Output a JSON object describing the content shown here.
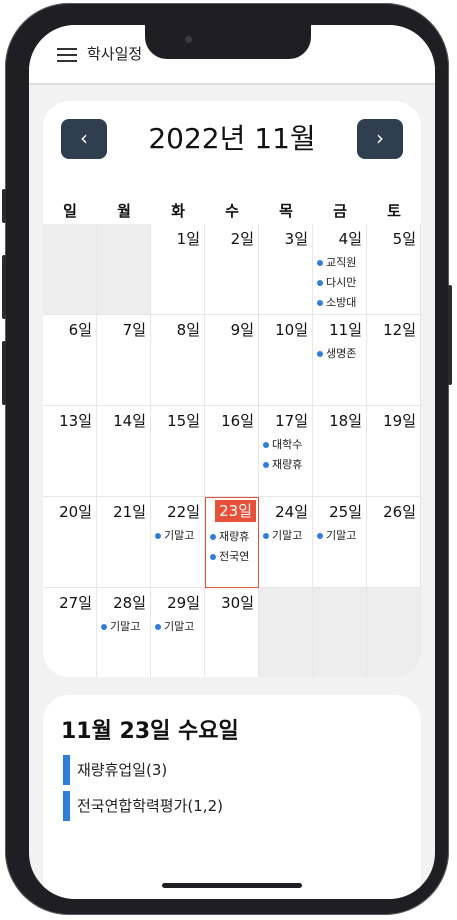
{
  "app": {
    "title": "학사일정"
  },
  "calendar": {
    "title": "2022년 11월",
    "prev_label": "‹",
    "next_label": "›",
    "weekdays": [
      "일",
      "월",
      "화",
      "수",
      "목",
      "금",
      "토"
    ],
    "cells": [
      {
        "day": "",
        "events": []
      },
      {
        "day": "",
        "events": []
      },
      {
        "day": "1일",
        "events": []
      },
      {
        "day": "2일",
        "events": []
      },
      {
        "day": "3일",
        "events": []
      },
      {
        "day": "4일",
        "events": [
          "교직원",
          "다시만",
          "소방대"
        ]
      },
      {
        "day": "5일",
        "events": []
      },
      {
        "day": "6일",
        "events": []
      },
      {
        "day": "7일",
        "events": []
      },
      {
        "day": "8일",
        "events": []
      },
      {
        "day": "9일",
        "events": []
      },
      {
        "day": "10일",
        "events": []
      },
      {
        "day": "11일",
        "events": [
          "생명존"
        ]
      },
      {
        "day": "12일",
        "events": []
      },
      {
        "day": "13일",
        "events": []
      },
      {
        "day": "14일",
        "events": []
      },
      {
        "day": "15일",
        "events": []
      },
      {
        "day": "16일",
        "events": []
      },
      {
        "day": "17일",
        "events": [
          "대학수",
          "재량휴"
        ]
      },
      {
        "day": "18일",
        "events": []
      },
      {
        "day": "19일",
        "events": []
      },
      {
        "day": "20일",
        "events": []
      },
      {
        "day": "21일",
        "events": []
      },
      {
        "day": "22일",
        "events": [
          "기말고"
        ]
      },
      {
        "day": "23일",
        "events": [
          "재량휴",
          "전국연"
        ],
        "today": true
      },
      {
        "day": "24일",
        "events": [
          "기말고"
        ]
      },
      {
        "day": "25일",
        "events": [
          "기말고"
        ]
      },
      {
        "day": "26일",
        "events": []
      },
      {
        "day": "27일",
        "events": []
      },
      {
        "day": "28일",
        "events": [
          "기말고"
        ]
      },
      {
        "day": "29일",
        "events": [
          "기말고"
        ]
      },
      {
        "day": "30일",
        "events": []
      },
      {
        "day": "",
        "events": []
      },
      {
        "day": "",
        "events": []
      },
      {
        "day": "",
        "events": []
      }
    ]
  },
  "detail": {
    "title": "11월 23일 수요일",
    "items": [
      "재량휴업일(3)",
      "전국연합학력평가(1,2)"
    ]
  },
  "colors": {
    "accent": "#2f7fd8",
    "today": "#e8503a",
    "nav_button": "#2f3f4f"
  }
}
